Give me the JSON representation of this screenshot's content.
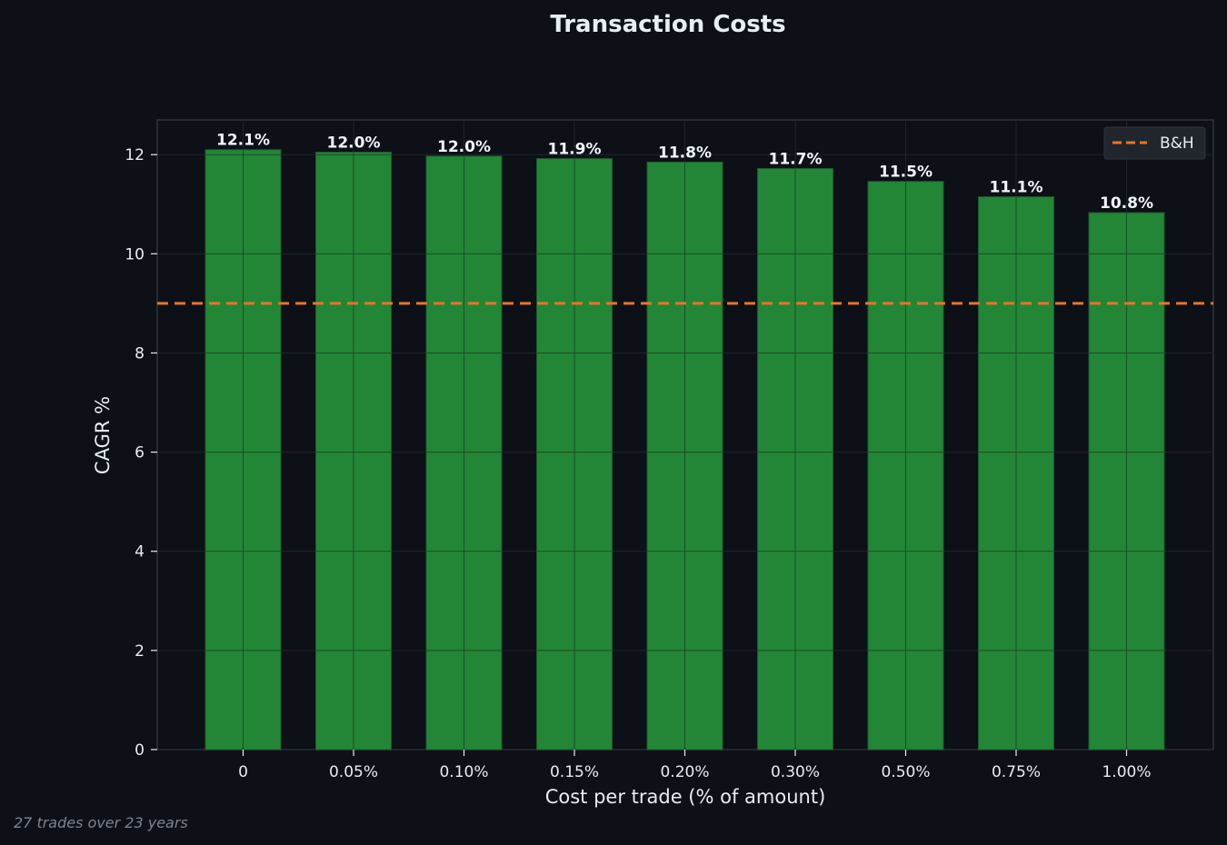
{
  "chart_data": {
    "type": "bar",
    "title": "Transaction Costs",
    "xlabel": "Cost per trade (% of amount)",
    "ylabel": "CAGR %",
    "categories": [
      "0",
      "0.05%",
      "0.10%",
      "0.15%",
      "0.20%",
      "0.30%",
      "0.50%",
      "0.75%",
      "1.00%"
    ],
    "values": [
      12.1,
      12.05,
      11.97,
      11.92,
      11.85,
      11.72,
      11.46,
      11.15,
      10.83
    ],
    "data_labels": [
      "12.1%",
      "12.0%",
      "12.0%",
      "11.9%",
      "11.8%",
      "11.7%",
      "11.5%",
      "11.1%",
      "10.8%"
    ],
    "ylim": [
      0,
      12.7
    ],
    "yticks": [
      0,
      2,
      4,
      6,
      8,
      10,
      12
    ],
    "ytick_labels": [
      "0",
      "2",
      "4",
      "6",
      "8",
      "10",
      "12"
    ],
    "grid": true,
    "reference_line": {
      "name": "B&H",
      "value": 9.0,
      "style": "dashed"
    },
    "legend": {
      "position": "top-right",
      "entries": [
        "B&H"
      ]
    },
    "colors": {
      "bar": "#238636",
      "reference_line": "#e3762e",
      "background": "#0d1017",
      "grid": "#1e242d"
    },
    "footnote": "27 trades over 23 years"
  }
}
